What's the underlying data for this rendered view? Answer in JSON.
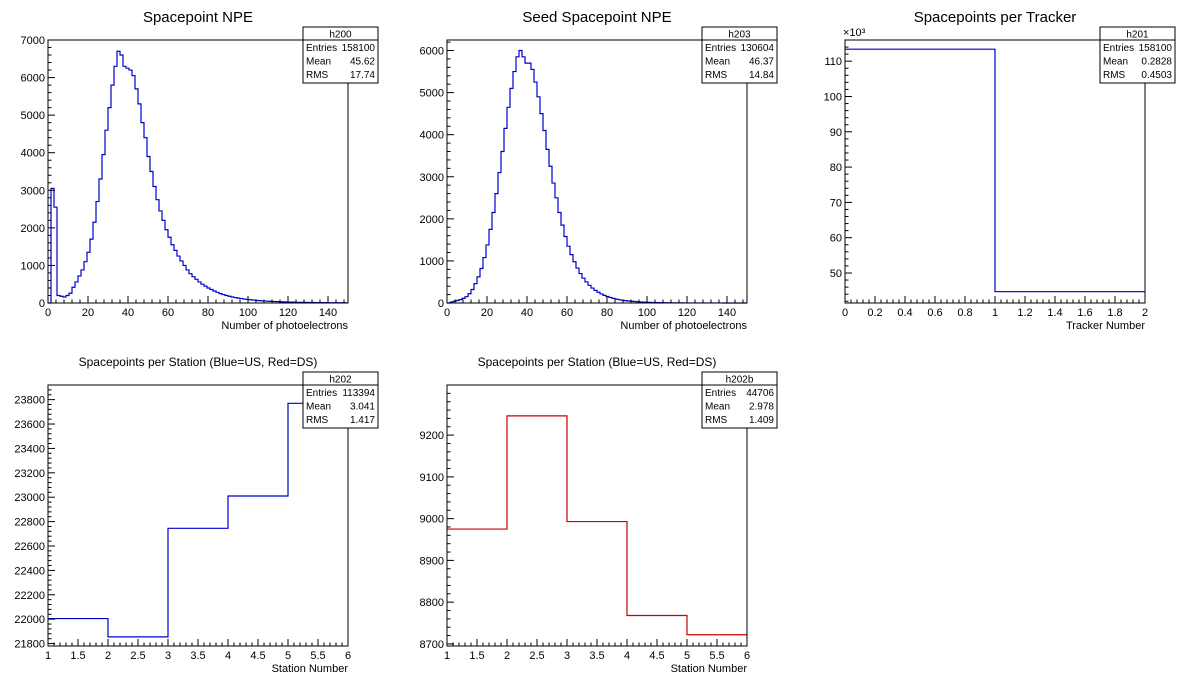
{
  "chart_data": [
    {
      "id": "h200",
      "type": "histogram",
      "title": "Spacepoint NPE",
      "xlabel": "Number of photoelectrons",
      "ylabel": "",
      "xlim": [
        0,
        150
      ],
      "ylim": [
        0,
        7000
      ],
      "xticks": [
        0,
        20,
        40,
        60,
        80,
        100,
        120,
        140
      ],
      "yticks": [
        0,
        1000,
        2000,
        3000,
        4000,
        5000,
        6000,
        7000
      ],
      "color": "#0000cc",
      "stats": {
        "name": "h200",
        "entries": "158100",
        "mean": "45.62",
        "rms": "17.74"
      },
      "bin_edges_start": 0,
      "bin_width": 1.5,
      "values": [
        0,
        3050,
        2550,
        200,
        180,
        160,
        200,
        260,
        420,
        560,
        720,
        880,
        1100,
        1350,
        1700,
        2150,
        2700,
        3300,
        3950,
        4600,
        5200,
        5800,
        6300,
        6700,
        6600,
        6300,
        6250,
        6200,
        6050,
        5700,
        5300,
        4800,
        4400,
        3900,
        3500,
        3100,
        2750,
        2450,
        2200,
        1950,
        1750,
        1550,
        1400,
        1250,
        1120,
        1000,
        880,
        780,
        700,
        630,
        560,
        500,
        450,
        400,
        360,
        320,
        285,
        250,
        225,
        200,
        180,
        160,
        145,
        130,
        118,
        105,
        95,
        86,
        78,
        70,
        63,
        57,
        52,
        47,
        43,
        39,
        36,
        33,
        30,
        27,
        25,
        23,
        21,
        19,
        17,
        16,
        15,
        14,
        13,
        12,
        11,
        10,
        9,
        8,
        8,
        7,
        7,
        6,
        6,
        5,
        5
      ]
    },
    {
      "id": "h203",
      "type": "histogram",
      "title": "Seed Spacepoint NPE",
      "xlabel": "Number of photoelectrons",
      "ylabel": "",
      "xlim": [
        0,
        150
      ],
      "ylim": [
        0,
        6250
      ],
      "xticks": [
        0,
        20,
        40,
        60,
        80,
        100,
        120,
        140
      ],
      "yticks": [
        0,
        1000,
        2000,
        3000,
        4000,
        5000,
        6000
      ],
      "color": "#0000cc",
      "stats": {
        "name": "h203",
        "entries": "130604",
        "mean": "46.37",
        "rms": "14.84"
      },
      "bin_edges_start": 0,
      "bin_width": 1.5,
      "values": [
        0,
        20,
        40,
        60,
        80,
        110,
        150,
        220,
        320,
        460,
        620,
        820,
        1080,
        1380,
        1750,
        2150,
        2600,
        3100,
        3600,
        4150,
        4650,
        5100,
        5500,
        5850,
        6000,
        5850,
        5700,
        5700,
        5550,
        5250,
        4900,
        4500,
        4100,
        3650,
        3250,
        2850,
        2500,
        2150,
        1850,
        1580,
        1350,
        1150,
        980,
        830,
        700,
        590,
        500,
        420,
        355,
        300,
        255,
        215,
        182,
        154,
        130,
        110,
        93,
        79,
        67,
        57,
        48,
        41,
        35,
        30,
        25,
        21,
        18,
        15,
        13,
        11,
        9,
        8,
        7,
        6,
        5,
        4,
        4,
        3,
        3,
        2,
        2,
        2,
        1,
        1,
        1,
        1,
        1,
        1,
        1,
        1,
        1,
        1,
        0,
        0,
        0,
        0,
        0,
        0,
        0,
        0
      ]
    },
    {
      "id": "h201",
      "type": "histogram",
      "title": "Spacepoints per Tracker",
      "xlabel": "Tracker Number",
      "ylabel": "",
      "xlim": [
        0,
        2
      ],
      "ylim": [
        41.5,
        116
      ],
      "y_exponent_label": "×10³",
      "xticks": [
        0,
        0.2,
        0.4,
        0.6,
        0.8,
        1,
        1.2,
        1.4,
        1.6,
        1.8,
        2
      ],
      "yticks": [
        50,
        60,
        70,
        80,
        90,
        100,
        110
      ],
      "color": "#0000cc",
      "stats": {
        "name": "h201",
        "entries": "158100",
        "mean": "0.2828",
        "rms": "0.4503"
      },
      "bin_edges_start": 0,
      "bin_width": 1,
      "values": [
        113.39,
        44.71
      ]
    },
    {
      "id": "h202",
      "type": "histogram",
      "title": "Spacepoints per Station (Blue=US, Red=DS)",
      "xlabel": "Station Number",
      "ylabel": "",
      "xlim": [
        1,
        6
      ],
      "ylim": [
        21780,
        23920
      ],
      "xticks": [
        1,
        1.5,
        2,
        2.5,
        3,
        3.5,
        4,
        4.5,
        5,
        5.5,
        6
      ],
      "yticks": [
        21800,
        22000,
        22200,
        22400,
        22600,
        22800,
        23000,
        23200,
        23400,
        23600,
        23800
      ],
      "color": "#0000cc",
      "stats": {
        "name": "h202",
        "entries": "113394",
        "mean": "3.041",
        "rms": "1.417"
      },
      "bin_edges_start": 1,
      "bin_width": 1,
      "values": [
        22005,
        21855,
        22745,
        23010,
        23770
      ]
    },
    {
      "id": "h202b",
      "type": "histogram",
      "title": "Spacepoints per Station (Blue=US, Red=DS)",
      "xlabel": "Station Number",
      "ylabel": "",
      "xlim": [
        1,
        6
      ],
      "ylim": [
        8695,
        9320
      ],
      "xticks": [
        1,
        1.5,
        2,
        2.5,
        3,
        3.5,
        4,
        4.5,
        5,
        5.5,
        6
      ],
      "yticks": [
        8700,
        8800,
        8900,
        9000,
        9100,
        9200
      ],
      "color": "#cc0000",
      "stats": {
        "name": "h202b",
        "entries": "44706",
        "mean": "2.978",
        "rms": "1.409"
      },
      "bin_edges_start": 1,
      "bin_width": 1,
      "values": [
        8975,
        9246,
        8993,
        8768,
        8722
      ]
    }
  ],
  "stat_labels": {
    "entries": "Entries",
    "mean": "Mean",
    "rms": "RMS"
  }
}
